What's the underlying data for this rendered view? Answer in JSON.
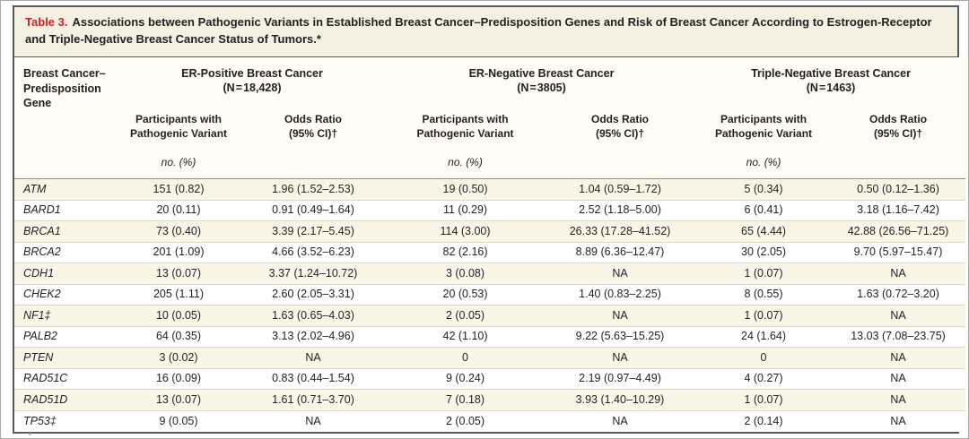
{
  "title": {
    "label": "Table 3.",
    "text": "Associations between Pathogenic Variants in Established Breast Cancer–Predisposition Genes and Risk of Breast Cancer According to Estrogen-Receptor and Triple-Negative Breast Cancer Status of Tumors.*"
  },
  "colors": {
    "accent_red": "#d22026",
    "title_band_bg": "#f4f0e2",
    "stripe_bg": "#faf6e7",
    "frame_border": "#58595b",
    "text": "#231f20"
  },
  "table": {
    "row_header": "Breast Cancer–Predisposition Gene",
    "groups": [
      {
        "line1": "ER-Positive Breast Cancer",
        "line2": "(N = 18,428)"
      },
      {
        "line1": "ER-Negative Breast Cancer",
        "line2": "(N = 3805)"
      },
      {
        "line1": "Triple-Negative Breast Cancer",
        "line2": "(N = 1463)"
      }
    ],
    "subheaders": {
      "participants_l1": "Participants with",
      "participants_l2": "Pathogenic Variant",
      "odds_ratio_l1": "Odds Ratio",
      "odds_ratio_l2": "(95% CI)†"
    },
    "units": "no. (%)",
    "rows": [
      {
        "gene": "ATM",
        "cells": [
          "151 (0.82)",
          "1.96 (1.52–2.53)",
          "19 (0.50)",
          "1.04 (0.59–1.72)",
          "5 (0.34)",
          "0.50 (0.12–1.36)"
        ]
      },
      {
        "gene": "BARD1",
        "cells": [
          "20 (0.11)",
          "0.91 (0.49–1.64)",
          "11 (0.29)",
          "2.52 (1.18–5.00)",
          "6 (0.41)",
          "3.18 (1.16–7.42)"
        ]
      },
      {
        "gene": "BRCA1",
        "cells": [
          "73 (0.40)",
          "3.39 (2.17–5.45)",
          "114 (3.00)",
          "26.33 (17.28–41.52)",
          "65 (4.44)",
          "42.88 (26.56–71.25)"
        ]
      },
      {
        "gene": "BRCA2",
        "cells": [
          "201 (1.09)",
          "4.66 (3.52–6.23)",
          "82 (2.16)",
          "8.89 (6.36–12.47)",
          "30 (2.05)",
          "9.70 (5.97–15.47)"
        ]
      },
      {
        "gene": "CDH1",
        "cells": [
          "13 (0.07)",
          "3.37 (1.24–10.72)",
          "3 (0.08)",
          "NA",
          "1 (0.07)",
          "NA"
        ]
      },
      {
        "gene": "CHEK2",
        "cells": [
          "205 (1.11)",
          "2.60 (2.05–3.31)",
          "20 (0.53)",
          "1.40 (0.83–2.25)",
          "8 (0.55)",
          "1.63 (0.72–3.20)"
        ]
      },
      {
        "gene": "NF1‡",
        "cells": [
          "10 (0.05)",
          "1.63 (0.65–4.03)",
          "2 (0.05)",
          "NA",
          "1 (0.07)",
          "NA"
        ]
      },
      {
        "gene": "PALB2",
        "cells": [
          "64 (0.35)",
          "3.13 (2.02–4.96)",
          "42 (1.10)",
          "9.22 (5.63–15.25)",
          "24 (1.64)",
          "13.03 (7.08–23.75)"
        ]
      },
      {
        "gene": "PTEN",
        "cells": [
          "3 (0.02)",
          "NA",
          "0",
          "NA",
          "0",
          "NA"
        ]
      },
      {
        "gene": "RAD51C",
        "cells": [
          "16 (0.09)",
          "0.83 (0.44–1.54)",
          "9 (0.24)",
          "2.19 (0.97–4.49)",
          "4 (0.27)",
          "NA"
        ]
      },
      {
        "gene": "RAD51D",
        "cells": [
          "13 (0.07)",
          "1.61 (0.71–3.70)",
          "7 (0.18)",
          "3.93 (1.40–10.29)",
          "1 (0.07)",
          "NA"
        ]
      },
      {
        "gene": "TP53‡",
        "cells": [
          "9 (0.05)",
          "NA",
          "2 (0.05)",
          "NA",
          "2 (0.14)",
          "NA"
        ]
      }
    ]
  },
  "footnote_fragment": "*"
}
